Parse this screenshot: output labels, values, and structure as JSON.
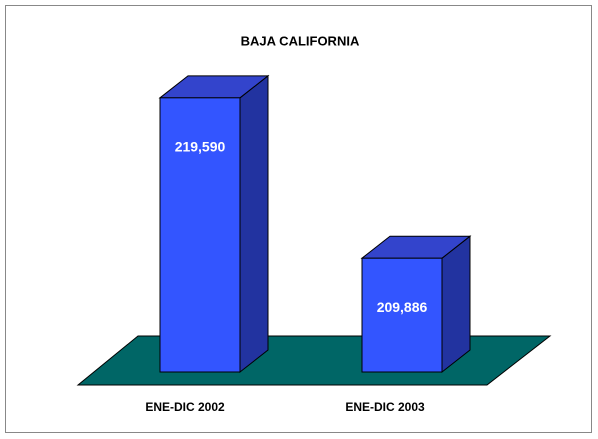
{
  "chart_data": {
    "type": "bar3d",
    "title": "BAJA CALIFORNIA",
    "categories": [
      "ENE-DIC 2002",
      "ENE-DIC 2003"
    ],
    "values": [
      219590,
      209886
    ],
    "value_labels": [
      "219,590",
      "209,886"
    ],
    "color": "#3355ff",
    "ylim": [
      203000,
      222000
    ]
  }
}
